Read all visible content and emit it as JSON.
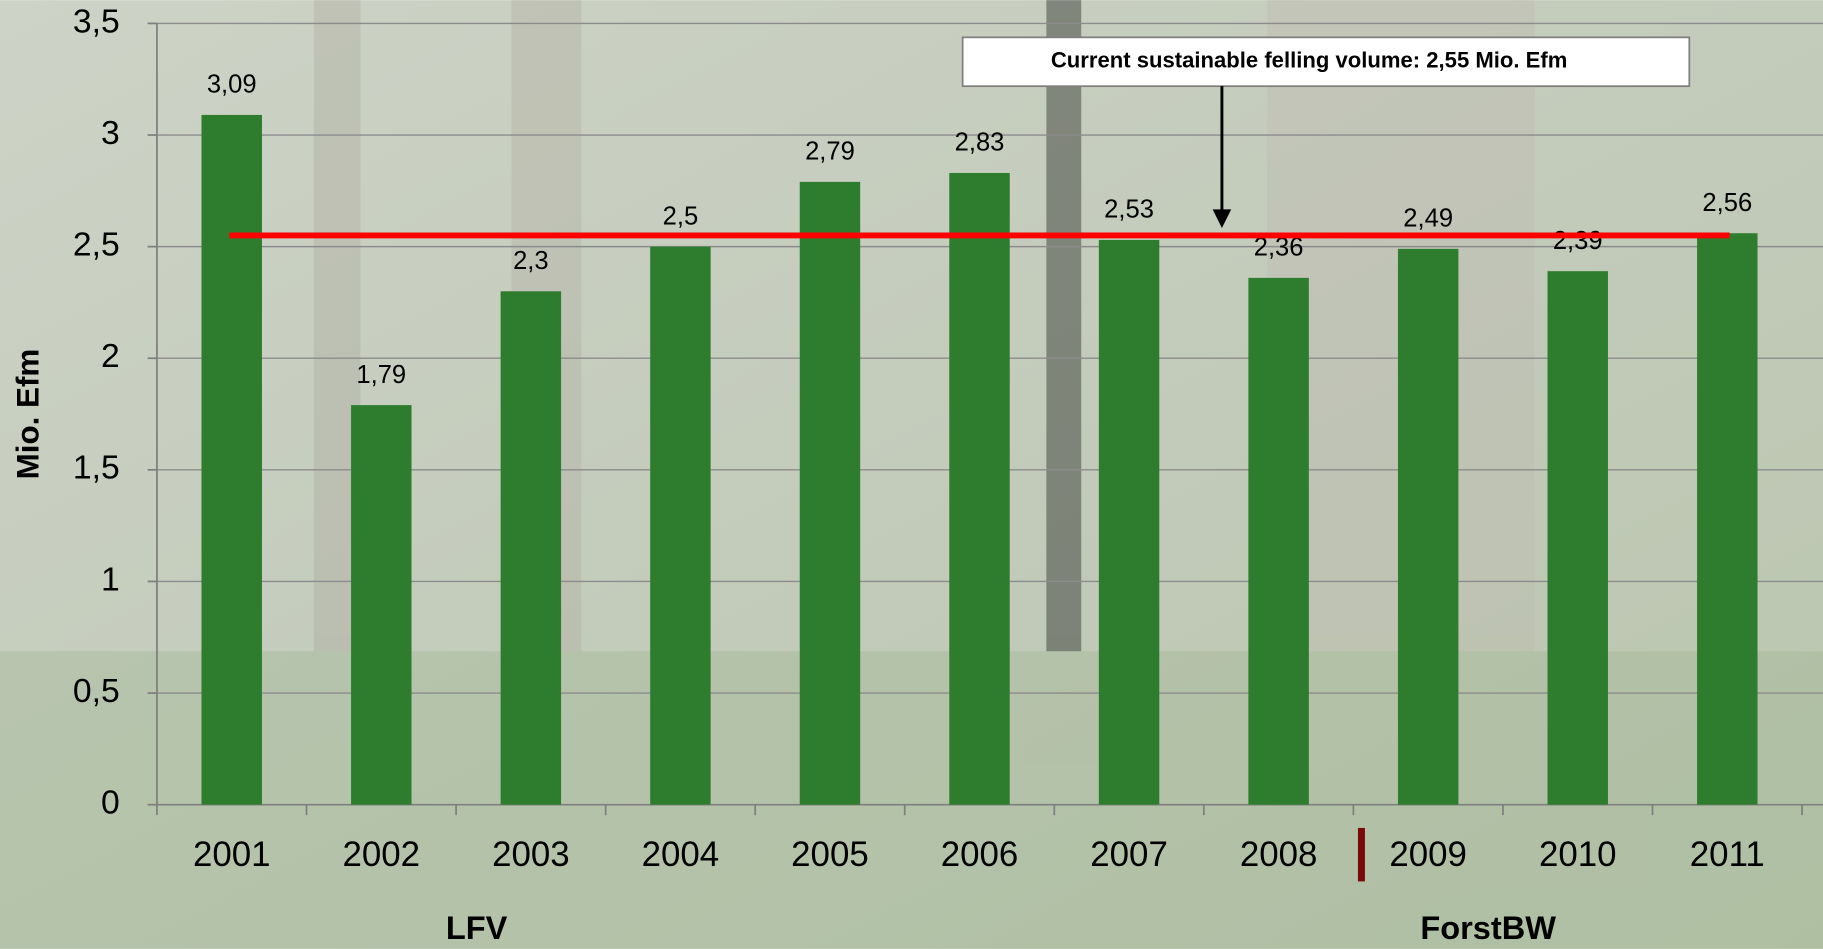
{
  "chart_data": {
    "type": "bar",
    "y_label": "Mio. Efm",
    "categories": [
      "2001",
      "2002",
      "2003",
      "2004",
      "2005",
      "2006",
      "2007",
      "2008",
      "2009",
      "2010",
      "2011"
    ],
    "values": [
      3.09,
      1.79,
      2.3,
      2.5,
      2.79,
      2.83,
      2.53,
      2.36,
      2.49,
      2.39,
      2.56
    ],
    "value_labels": [
      "3,09",
      "1,79",
      "2,3",
      "2,5",
      "2,79",
      "2,83",
      "2,53",
      "2,36",
      "2,49",
      "2,39",
      "2,56"
    ],
    "color": "#2e7d2e",
    "ylim": [
      0,
      3.5
    ],
    "yticks": [
      0,
      {
        "value": 0.5,
        "label": "0,5"
      },
      1,
      {
        "value": 1.5,
        "label": "1,5"
      },
      2,
      {
        "value": 2.5,
        "label": "2,5"
      },
      3,
      {
        "value": 3.5,
        "label": "3,5"
      }
    ],
    "grid": true,
    "reference_value": 2.55,
    "reference_color": "#ff0000",
    "annotation": "Current sustainable felling volume: 2,55 Mio. Efm",
    "groups": [
      "LFV",
      "ForstBW"
    ]
  }
}
